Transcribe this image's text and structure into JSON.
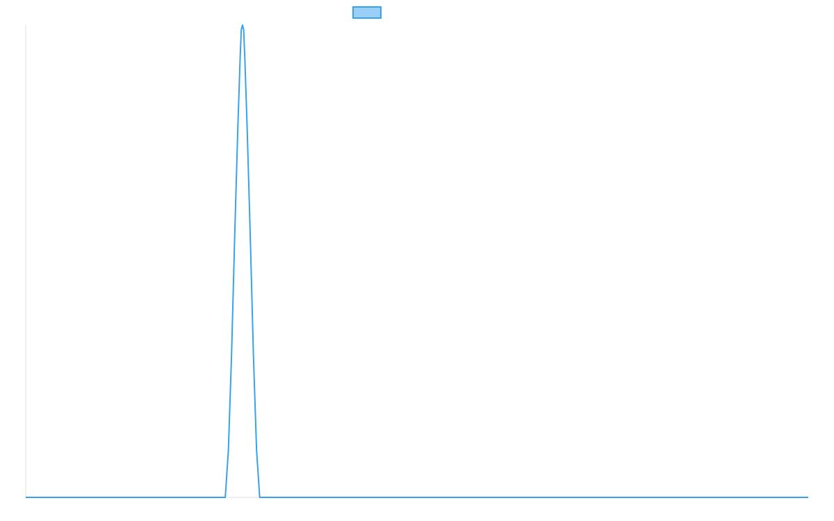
{
  "chart_data": {
    "type": "line",
    "title": "",
    "xlabel": "",
    "ylabel": "",
    "grid": false,
    "legend": {
      "position": "top",
      "entries": [
        {
          "label": "",
          "color": "#36a2eb",
          "fill": "#9ad0f5"
        }
      ]
    },
    "xlim": [
      0,
      100
    ],
    "ylim": [
      0,
      1
    ],
    "series": [
      {
        "color": "#36a2eb",
        "points": [
          [
            0,
            0
          ],
          [
            25.5,
            0
          ],
          [
            25.9,
            0.1
          ],
          [
            26.3,
            0.3
          ],
          [
            26.7,
            0.55
          ],
          [
            27.1,
            0.78
          ],
          [
            27.4,
            0.93
          ],
          [
            27.55,
            0.99
          ],
          [
            27.7,
            1.0
          ],
          [
            27.85,
            0.99
          ],
          [
            28.0,
            0.93
          ],
          [
            28.3,
            0.78
          ],
          [
            28.7,
            0.55
          ],
          [
            29.1,
            0.3
          ],
          [
            29.5,
            0.1
          ],
          [
            29.9,
            0
          ],
          [
            100,
            0
          ]
        ]
      }
    ]
  },
  "colors": {
    "axis": "#e0e0e0",
    "line": "#36a2eb",
    "legend_fill": "#9ad0f5"
  }
}
